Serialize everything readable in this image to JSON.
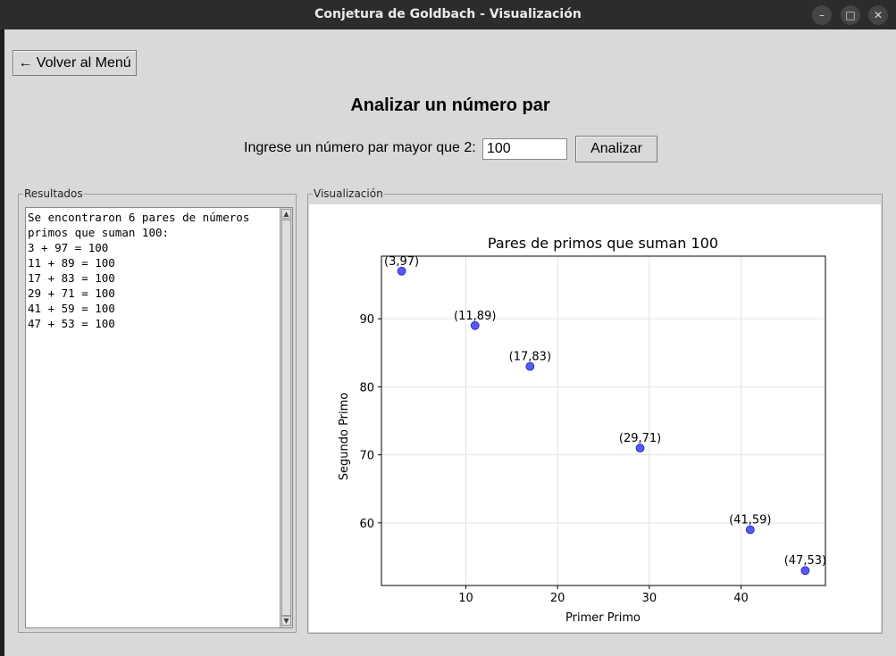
{
  "window": {
    "title": "Conjetura de Goldbach - Visualización",
    "minimize_glyph": "–",
    "maximize_glyph": "□",
    "close_glyph": "✕"
  },
  "toolbar": {
    "back_label": "← Volver al Menú"
  },
  "heading": "Analizar un número par",
  "form": {
    "prompt": "Ingrese un número par mayor que 2:",
    "value": "100",
    "analyze_label": "Analizar"
  },
  "results": {
    "frame_label": "Resultados",
    "summary": "Se encontraron 6 pares de números\nprimos que suman 100:",
    "lines": [
      "3 + 97 = 100",
      "11 + 89 = 100",
      "17 + 83 = 100",
      "29 + 71 = 100",
      "41 + 59 = 100",
      "47 + 53 = 100"
    ]
  },
  "visualization": {
    "frame_label": "Visualización"
  },
  "colors": {
    "point": "#3b3bf0",
    "window_bg": "#d9d9d9",
    "titlebar": "#2c2c2c"
  },
  "chart_data": {
    "type": "scatter",
    "title": "Pares de primos que suman 100",
    "xlabel": "Primer Primo",
    "ylabel": "Segundo Primo",
    "x": [
      3,
      11,
      17,
      29,
      41,
      47
    ],
    "y": [
      97,
      89,
      83,
      71,
      59,
      53
    ],
    "point_labels": [
      "(3,97)",
      "(11,89)",
      "(17,83)",
      "(29,71)",
      "(41,59)",
      "(47,53)"
    ],
    "xlim": [
      0.8,
      49.2
    ],
    "ylim": [
      50.8,
      99.2
    ],
    "xticks": [
      10,
      20,
      30,
      40
    ],
    "yticks": [
      60,
      70,
      80,
      90
    ],
    "grid": true
  }
}
